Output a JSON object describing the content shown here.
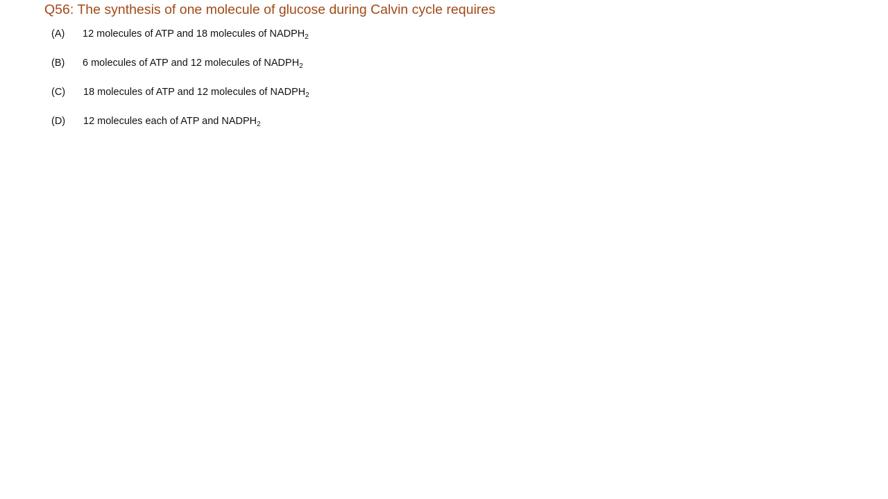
{
  "question": {
    "title": "Q56: The synthesis of one molecule of glucose during Calvin cycle requires"
  },
  "options": [
    {
      "letter": "(A)",
      "text": "12 molecules of ATP and 18 molecules of NADPH",
      "subscript": "2"
    },
    {
      "letter": "(B)",
      "text": "6 molecules of ATP and 12 molecules of NADPH",
      "subscript": "2"
    },
    {
      "letter": "(C)",
      "text": "18 molecules of ATP and 12 molecules of NADPH",
      "subscript": "2"
    },
    {
      "letter": "(D)",
      "text": "12 molecules each of ATP and NADPH",
      "subscript": "2"
    }
  ],
  "colors": {
    "title": "#a24a18",
    "body_text": "#111111",
    "background": "#ffffff"
  }
}
